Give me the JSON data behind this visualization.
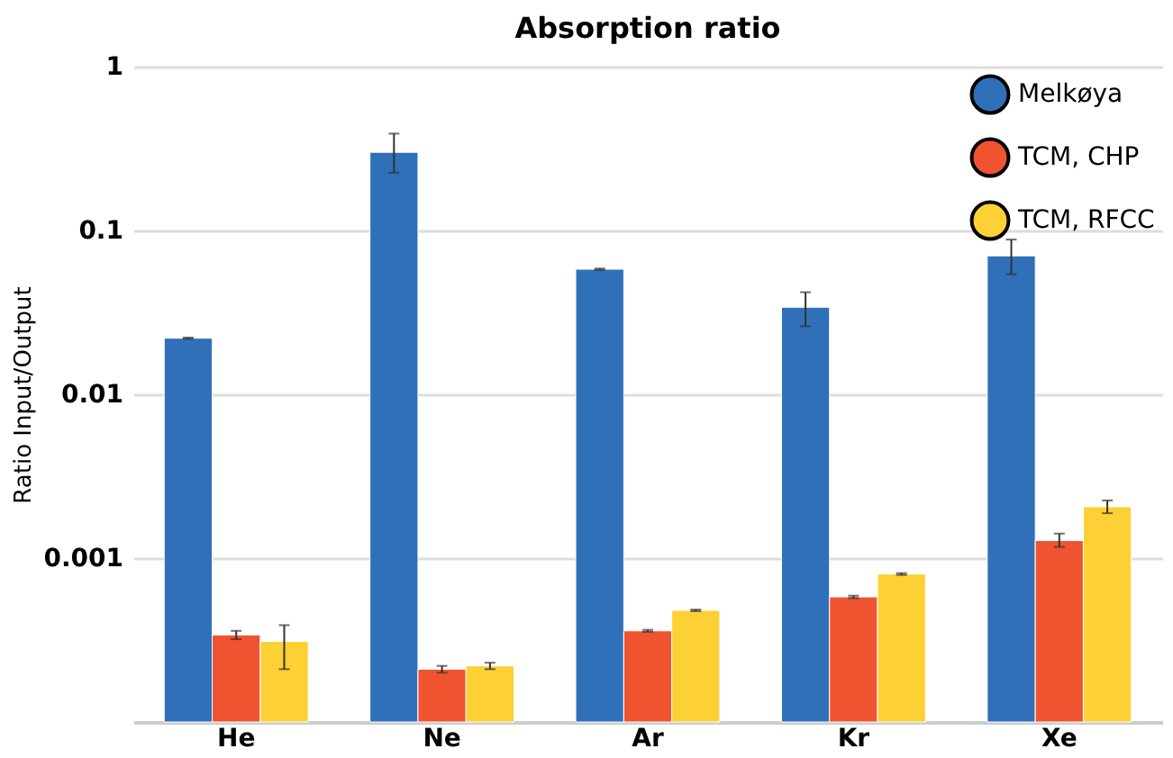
{
  "chart_data": {
    "type": "bar",
    "title": "Absorption ratio",
    "ylabel": "Ratio Input/Output",
    "categories": [
      "He",
      "Ne",
      "Ar",
      "Kr",
      "Xe"
    ],
    "log": true,
    "ylim": [
      0.0001,
      1
    ],
    "yticks": [
      1,
      0.1,
      0.01,
      0.001,
      {
        "value": 0.0001,
        "label": null
      }
    ],
    "grid": "y",
    "legend": "top right",
    "series": [
      {
        "name": "Melkøya",
        "color": "#3070b8",
        "values": [
          0.022,
          0.3,
          0.058,
          0.034,
          0.07
        ],
        "errors": [
          0.0002,
          [
            0.225,
            0.39
          ],
          0.0005,
          [
            0.026,
            0.042
          ],
          [
            0.054,
            0.088
          ]
        ]
      },
      {
        "name": "TCM, CHP",
        "color": "#f05330",
        "values": [
          0.00034,
          0.00021,
          0.00036,
          0.00058,
          0.00128
        ],
        "errors": [
          2e-05,
          1e-05,
          5e-06,
          1e-05,
          [
            0.00117,
            0.00141
          ]
        ]
      },
      {
        "name": "TCM, RFCC",
        "color": "#fdd035",
        "values": [
          0.00031,
          0.00022,
          0.00048,
          0.0008,
          0.00206
        ],
        "errors": [
          [
            0.00021,
            0.00039
          ],
          1e-05,
          5e-06,
          1e-05,
          [
            0.00188,
            0.00225
          ]
        ]
      }
    ]
  }
}
